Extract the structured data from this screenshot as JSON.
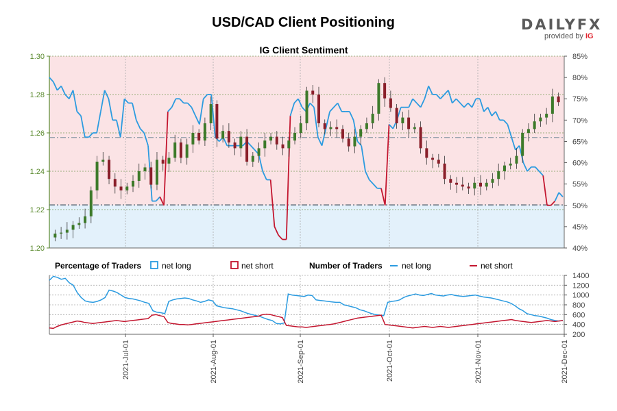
{
  "page": {
    "title": "USD/CAD Client Positioning",
    "logo": {
      "text": "DAILYFX",
      "sub": "provided by",
      "sub_brand": "IG"
    }
  },
  "chart_data": [
    {
      "type": "candlestick",
      "title": "IG Client Sentiment",
      "y_left": {
        "range": [
          1.2,
          1.3
        ],
        "ticks": [
          "1.20",
          "1.22",
          "1.24",
          "1.26",
          "1.28",
          "1.30"
        ]
      },
      "y_right": {
        "range": [
          40,
          85
        ],
        "ticks": [
          "40%",
          "45%",
          "50%",
          "55%",
          "60%",
          "65%",
          "70%",
          "75%",
          "80%",
          "85%"
        ]
      },
      "reference_lines": {
        "price": 1.2576,
        "percent_line": 50.1
      },
      "price": [
        1.2075,
        1.208,
        1.2095,
        1.212,
        1.213,
        1.2165,
        1.23,
        1.245,
        1.246,
        1.236,
        1.232,
        1.23,
        1.232,
        1.235,
        1.24,
        1.242,
        1.233,
        1.246,
        1.244,
        1.247,
        1.255,
        1.247,
        1.254,
        1.26,
        1.256,
        1.265,
        1.275,
        1.257,
        1.261,
        1.255,
        1.252,
        1.258,
        1.245,
        1.248,
        1.252,
        1.256,
        1.258,
        1.254,
        1.252,
        1.256,
        1.26,
        1.265,
        1.282,
        1.28,
        1.265,
        1.262,
        1.263,
        1.262,
        1.257,
        1.253,
        1.258,
        1.262,
        1.265,
        1.27,
        1.286,
        1.278,
        1.273,
        1.265,
        1.268,
        1.262,
        1.263,
        1.252,
        1.247,
        1.246,
        1.244,
        1.236,
        1.234,
        1.233,
        1.232,
        1.231,
        1.234,
        1.232,
        1.234,
        1.236,
        1.24,
        1.243,
        1.244,
        1.248,
        1.26,
        1.262,
        1.266,
        1.268,
        1.27,
        1.279,
        1.276
      ],
      "percent_net_long": [
        80,
        79,
        77,
        78,
        76,
        75,
        77,
        72,
        71,
        66,
        66,
        67,
        67,
        72,
        77,
        75,
        70,
        70,
        66,
        75,
        74,
        74,
        70,
        68,
        67,
        64,
        51,
        51,
        52,
        50,
        72,
        73,
        75,
        75,
        74,
        74,
        73,
        71,
        69,
        75,
        76,
        76,
        66,
        65,
        66,
        64,
        64,
        64,
        64,
        64,
        65,
        64,
        63,
        62,
        58,
        56,
        56,
        45,
        43,
        42,
        42,
        71,
        74,
        75,
        73,
        72,
        74,
        73,
        66,
        64,
        68,
        72,
        73,
        74,
        72,
        72,
        72,
        70,
        65,
        64,
        58,
        56,
        55,
        54,
        54,
        50,
        69,
        68,
        70,
        73,
        73,
        73,
        75,
        74,
        73,
        75,
        78,
        76,
        76,
        75,
        76,
        77,
        74,
        75,
        74,
        73,
        74,
        73,
        75,
        75,
        72,
        73,
        71,
        72,
        70,
        70,
        69,
        66,
        63,
        64,
        60,
        58,
        59,
        59,
        58,
        57,
        50,
        50,
        51,
        53,
        52
      ]
    },
    {
      "type": "line",
      "legend": {
        "pct_label": "Percentage of Traders",
        "num_label": "Number of Traders",
        "pct_long": "net long",
        "pct_short": "net short",
        "num_long": "net long",
        "num_short": "net short"
      },
      "y_right": {
        "range": [
          200,
          1400
        ],
        "ticks": [
          "200",
          "400",
          "600",
          "800",
          "1000",
          "1200",
          "1400"
        ]
      },
      "x_ticks": [
        "2021-Jul-01",
        "2021-Aug-01",
        "2021-Sep-01",
        "2021-Oct-01",
        "2021-Nov-01",
        "2021-Dec-01"
      ],
      "series": [
        {
          "name": "net long",
          "values": [
            1300,
            1380,
            1360,
            1320,
            1340,
            1250,
            1200,
            1050,
            950,
            880,
            860,
            850,
            870,
            900,
            950,
            1100,
            1080,
            1050,
            1000,
            950,
            930,
            920,
            900,
            880,
            850,
            830,
            680,
            650,
            640,
            620,
            870,
            900,
            920,
            930,
            940,
            930,
            900,
            880,
            850,
            870,
            900,
            880,
            780,
            760,
            740,
            730,
            720,
            700,
            680,
            650,
            620,
            600,
            580,
            560,
            530,
            500,
            480,
            420,
            410,
            430,
            1020,
            1000,
            990,
            980,
            970,
            1000,
            990,
            900,
            890,
            880,
            870,
            860,
            850,
            850,
            800,
            780,
            760,
            740,
            700,
            680,
            650,
            620,
            600,
            590,
            580,
            850,
            870,
            880,
            900,
            950,
            980,
            1000,
            1020,
            1000,
            990,
            1010,
            1030,
            1000,
            990,
            980,
            1000,
            1010,
            990,
            980,
            970,
            980,
            990,
            1000,
            980,
            960,
            950,
            940,
            920,
            900,
            880,
            860,
            830,
            780,
            720,
            680,
            620,
            600,
            580,
            570,
            550,
            530,
            500,
            480,
            470,
            480
          ]
        },
        {
          "name": "net short",
          "values": [
            330,
            320,
            360,
            390,
            410,
            430,
            450,
            470,
            460,
            440,
            430,
            420,
            430,
            440,
            450,
            460,
            470,
            480,
            470,
            460,
            470,
            480,
            490,
            500,
            510,
            520,
            590,
            600,
            580,
            560,
            440,
            420,
            410,
            400,
            400,
            390,
            400,
            410,
            420,
            430,
            440,
            450,
            460,
            470,
            480,
            490,
            500,
            510,
            520,
            530,
            540,
            550,
            560,
            570,
            600,
            610,
            600,
            580,
            560,
            540,
            380,
            370,
            360,
            350,
            350,
            340,
            350,
            360,
            370,
            380,
            390,
            400,
            410,
            430,
            450,
            470,
            490,
            510,
            530,
            540,
            550,
            560,
            570,
            580,
            590,
            400,
            390,
            380,
            370,
            360,
            350,
            340,
            330,
            340,
            350,
            360,
            350,
            340,
            350,
            360,
            350,
            340,
            350,
            360,
            370,
            380,
            390,
            400,
            410,
            420,
            430,
            440,
            450,
            460,
            470,
            480,
            490,
            500,
            480,
            470,
            460,
            450,
            440,
            450,
            460,
            470,
            480,
            470,
            460,
            470,
            480
          ]
        }
      ]
    }
  ]
}
